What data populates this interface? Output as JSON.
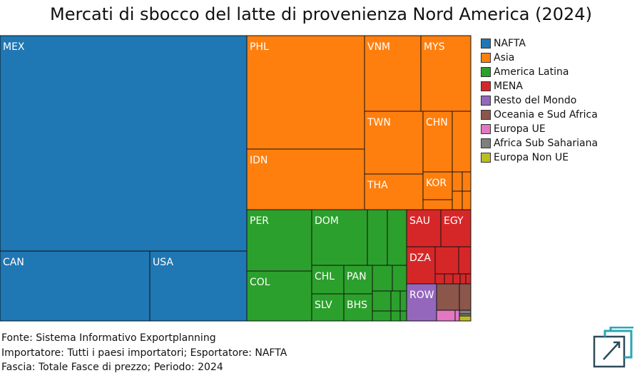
{
  "chart_data": {
    "type": "treemap",
    "title": "Mercati di sbocco del latte di provenienza Nord America (2024)",
    "legend_position": "right",
    "legend": [
      {
        "name": "NAFTA",
        "color": "#1f77b4"
      },
      {
        "name": "Asia",
        "color": "#ff7f0e"
      },
      {
        "name": "America Latina",
        "color": "#2ca02c"
      },
      {
        "name": "MENA",
        "color": "#d62728"
      },
      {
        "name": "Resto del Mondo",
        "color": "#9467bd"
      },
      {
        "name": "Oceania e Sud Africa",
        "color": "#8c564b"
      },
      {
        "name": "Europa UE",
        "color": "#e377c2"
      },
      {
        "name": "Africa Sub Sahariana",
        "color": "#7f7f7f"
      },
      {
        "name": "Europa Non UE",
        "color": "#bcbd22"
      }
    ],
    "labeled_cells": [
      {
        "group": "NAFTA",
        "label": "MEX",
        "share": 0.361
      },
      {
        "group": "NAFTA",
        "label": "CAN",
        "share": 0.072
      },
      {
        "group": "NAFTA",
        "label": "USA",
        "share": 0.048
      },
      {
        "group": "Asia",
        "label": "PHL",
        "share": 0.061
      },
      {
        "group": "Asia",
        "label": "IDN",
        "share": 0.034
      },
      {
        "group": "Asia",
        "label": "VNM",
        "share": 0.031
      },
      {
        "group": "Asia",
        "label": "MYS",
        "share": 0.026
      },
      {
        "group": "Asia",
        "label": "TWN",
        "share": 0.027
      },
      {
        "group": "Asia",
        "label": "THA",
        "share": 0.015
      },
      {
        "group": "Asia",
        "label": "CHN",
        "share": 0.014
      },
      {
        "group": "Asia",
        "label": "KOR",
        "share": 0.006
      },
      {
        "group": "America Latina",
        "label": "PER",
        "share": 0.025
      },
      {
        "group": "America Latina",
        "label": "COL",
        "share": 0.021
      },
      {
        "group": "America Latina",
        "label": "DOM",
        "share": 0.023
      },
      {
        "group": "America Latina",
        "label": "CHL",
        "share": 0.005
      },
      {
        "group": "America Latina",
        "label": "PAN",
        "share": 0.005
      },
      {
        "group": "America Latina",
        "label": "SLV",
        "share": 0.005
      },
      {
        "group": "America Latina",
        "label": "BHS",
        "share": 0.005
      },
      {
        "group": "MENA",
        "label": "SAU",
        "share": 0.008
      },
      {
        "group": "MENA",
        "label": "EGY",
        "share": 0.007
      },
      {
        "group": "MENA",
        "label": "DZA",
        "share": 0.006
      },
      {
        "group": "Resto del Mondo",
        "label": "ROW",
        "share": 0.007
      }
    ]
  },
  "footer": {
    "source": "Fonte: Sistema Informativo Exportplanning",
    "importer": "Importatore: Tutti i paesi importatori; Esportatore: NAFTA",
    "band": "Fascia: Totale Fasce di prezzo; Periodo: 2024"
  }
}
